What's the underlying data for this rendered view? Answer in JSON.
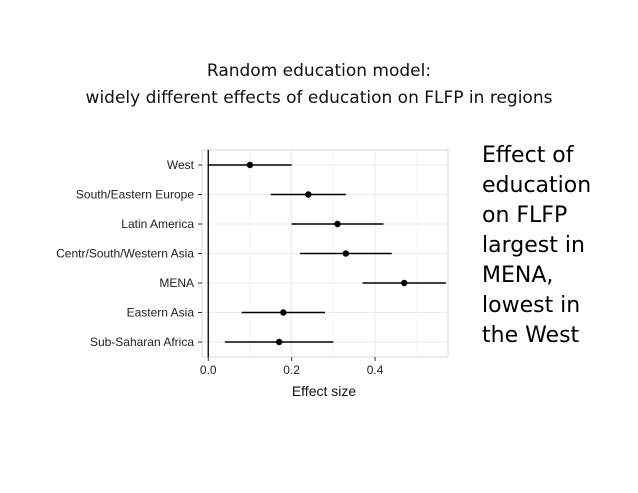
{
  "slide": {
    "title_line1": "Random education model:",
    "title_line2": "widely different effects of education on FLFP in regions",
    "side_text": [
      "Effect of",
      "education",
      "on FLFP",
      "largest in",
      "MENA,",
      "lowest in",
      "the West"
    ]
  },
  "chart_data": {
    "type": "scatter",
    "subtype": "forest-plot",
    "title": "",
    "xlabel": "Effect size",
    "ylabel": "",
    "xlim": [
      -0.015,
      0.575
    ],
    "xticks": [
      0.0,
      0.2,
      0.4
    ],
    "xtick_labels": [
      "0.0",
      "0.2",
      "0.4"
    ],
    "reference_line_x": 0.0,
    "grid": true,
    "legend": "none",
    "categories": [
      "West",
      "South/Eastern Europe",
      "Latin America",
      "Centr/South/Western Asia",
      "MENA",
      "Eastern Asia",
      "Sub-Saharan Africa"
    ],
    "estimate": [
      0.1,
      0.24,
      0.31,
      0.33,
      0.47,
      0.18,
      0.17
    ],
    "ci_low": [
      0.0,
      0.15,
      0.2,
      0.22,
      0.37,
      0.08,
      0.04
    ],
    "ci_high": [
      0.2,
      0.33,
      0.42,
      0.44,
      0.57,
      0.28,
      0.3
    ],
    "colors": {
      "panel": "#ffffff",
      "grid": "#ebebeb",
      "point": "#000000",
      "axis_text": "#222222"
    }
  }
}
